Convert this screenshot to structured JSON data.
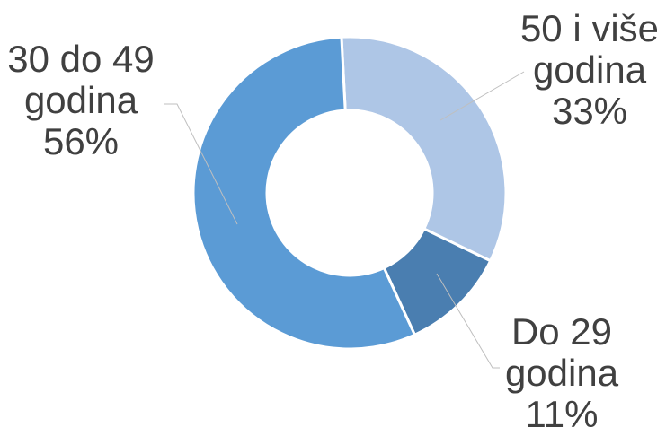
{
  "chart_data": {
    "type": "pie",
    "donut": true,
    "slices": [
      {
        "label_lines": [
          "50 i više",
          "godina"
        ],
        "value": 33,
        "value_label": "33%",
        "color": "#aec6e6"
      },
      {
        "label_lines": [
          "Do 29",
          "godina"
        ],
        "value": 11,
        "value_label": "11%",
        "color": "#4a7eb0"
      },
      {
        "label_lines": [
          "30 do 49",
          "godina"
        ],
        "value": 56,
        "value_label": "56%",
        "color": "#5b9bd5"
      }
    ],
    "start_angle_deg": -3,
    "direction": "clockwise",
    "legend": "none",
    "title": ""
  }
}
